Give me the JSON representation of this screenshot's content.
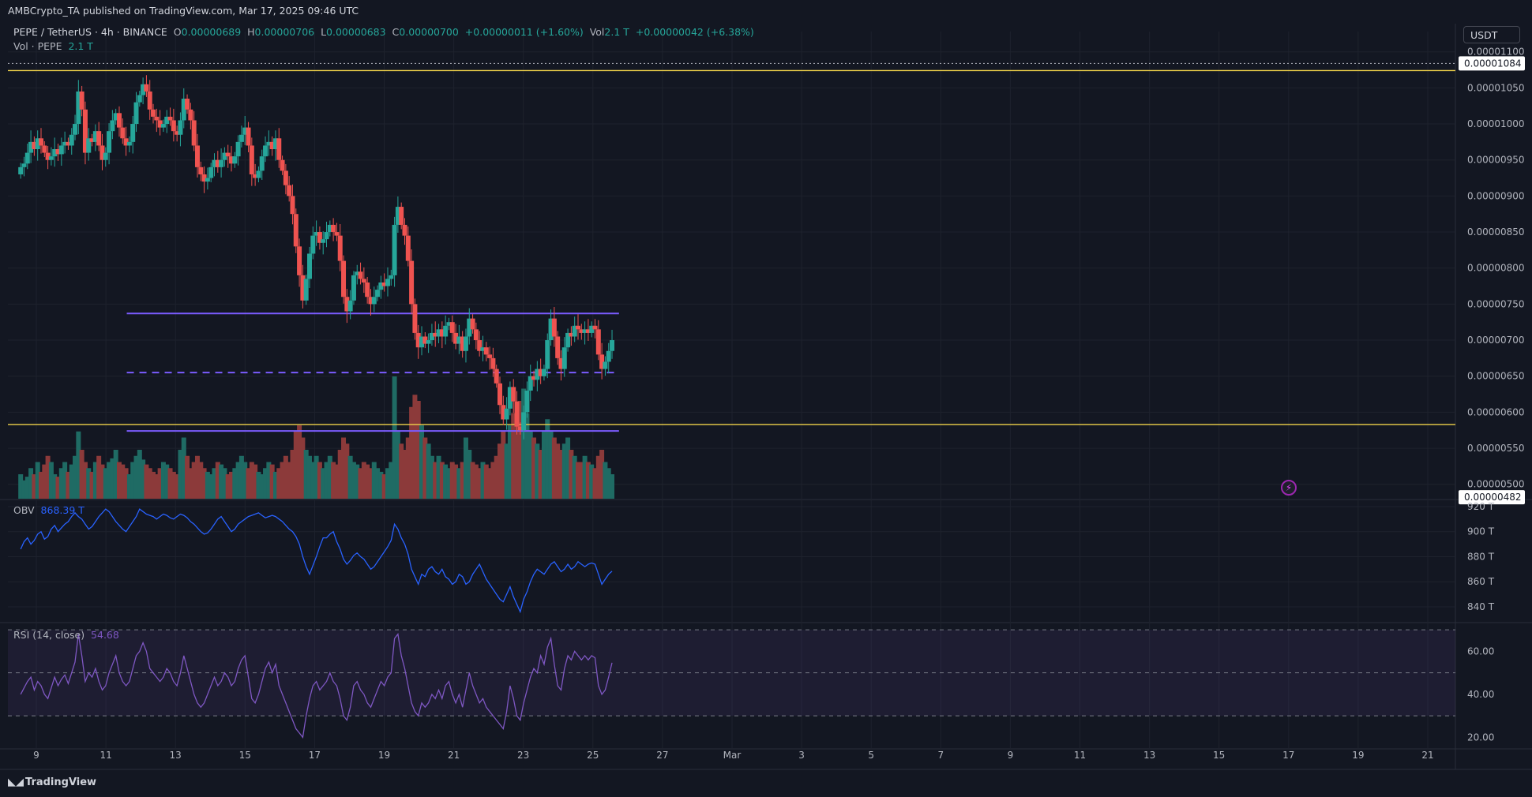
{
  "header": {
    "publisher": "AMBCrypto_TA published on TradingView.com, Mar 17, 2025 09:46 UTC",
    "symbol": "PEPE / TetherUS · 4h · BINANCE",
    "o_label": "O",
    "o_value": "0.00000689",
    "h_label": "H",
    "h_value": "0.00000706",
    "l_label": "L",
    "l_value": "0.00000683",
    "c_label": "C",
    "c_value": "0.00000700",
    "change": "+0.00000011 (+1.60%)",
    "vol_label": "Vol",
    "vol_value": "2.1 T",
    "vol_change": "+0.00000042 (+6.38%)",
    "vol_row_label": "Vol · PEPE",
    "vol_row_value": "2.1 T"
  },
  "currency_button": "USDT",
  "footer_logo": "TradingView",
  "colors": {
    "background": "#131722",
    "up": "#26a69a",
    "down": "#ef5350",
    "up_vol": "#1f6b64",
    "down_vol": "#8c3a3a",
    "support_line": "#f0d24a",
    "channel": "#7b5cff",
    "obv": "#2962ff",
    "rsi": "#7e57c2"
  },
  "chart_data": [
    {
      "type": "candlestick",
      "title": "PEPE / TetherUS · 4h · BINANCE",
      "price_axis_ticks": [
        "0.00001100",
        "0.00001050",
        "0.00001000",
        "0.00000950",
        "0.00000900",
        "0.00000850",
        "0.00000800",
        "0.00000750",
        "0.00000700",
        "0.00000650",
        "0.00000600",
        "0.00000550",
        "0.00000500"
      ],
      "price_axis_values": [
        11.0,
        10.5,
        10.0,
        9.5,
        9.0,
        8.5,
        8.0,
        7.5,
        7.0,
        6.5,
        6.0,
        5.5,
        5.0
      ],
      "price_unit_note": "values in units of 1e-6 USDT",
      "ylim": [
        4.8,
        11.15
      ],
      "x_axis_ticks": [
        "9",
        "11",
        "13",
        "15",
        "17",
        "19",
        "21",
        "23",
        "25",
        "27",
        "Mar",
        "3",
        "5",
        "7",
        "9",
        "11",
        "13",
        "15",
        "17",
        "19",
        "21"
      ],
      "price_labels": [
        {
          "label": "0.00001084",
          "value": 10.84
        },
        {
          "label": "0.00000482",
          "value": 4.82
        }
      ],
      "horizontal_lines": [
        {
          "name": "resistance-high",
          "value": 10.74,
          "color": "#f0d24a"
        },
        {
          "name": "support-low",
          "value": 5.83,
          "color": "#f0d24a"
        },
        {
          "name": "dotted-high",
          "value": 10.84,
          "color": "#b2b5be",
          "style": "dotted"
        }
      ],
      "range_channel": {
        "top": 7.37,
        "mid": 6.55,
        "bottom": 5.74,
        "start_day": 3.6,
        "end_day": 17.75,
        "color": "#7b5cff"
      },
      "candles_4h": [
        [
          9.3,
          9.4
        ],
        [
          9.4,
          9.45
        ],
        [
          9.45,
          9.6
        ],
        [
          9.6,
          9.75
        ],
        [
          9.75,
          9.65
        ],
        [
          9.65,
          9.8
        ],
        [
          9.8,
          9.7
        ],
        [
          9.7,
          9.6
        ],
        [
          9.6,
          9.5
        ],
        [
          9.5,
          9.55
        ],
        [
          9.55,
          9.65
        ],
        [
          9.65,
          9.58
        ],
        [
          9.58,
          9.7
        ],
        [
          9.7,
          9.75
        ],
        [
          9.75,
          9.7
        ],
        [
          9.7,
          9.85
        ],
        [
          9.85,
          10.0
        ],
        [
          10.0,
          10.45
        ],
        [
          10.45,
          10.2
        ],
        [
          10.2,
          9.6
        ],
        [
          9.6,
          9.8
        ],
        [
          9.8,
          9.75
        ],
        [
          9.75,
          9.9
        ],
        [
          9.9,
          9.7
        ],
        [
          9.7,
          9.5
        ],
        [
          9.5,
          9.6
        ],
        [
          9.6,
          9.9
        ],
        [
          9.9,
          10.05
        ],
        [
          10.05,
          10.15
        ],
        [
          10.15,
          9.95
        ],
        [
          9.95,
          9.8
        ],
        [
          9.8,
          9.7
        ],
        [
          9.7,
          9.75
        ],
        [
          9.75,
          10.0
        ],
        [
          10.0,
          10.3
        ],
        [
          10.3,
          10.4
        ],
        [
          10.4,
          10.55
        ],
        [
          10.55,
          10.45
        ],
        [
          10.45,
          10.2
        ],
        [
          10.2,
          10.1
        ],
        [
          10.1,
          10.05
        ],
        [
          10.05,
          9.95
        ],
        [
          9.95,
          10.0
        ],
        [
          10.0,
          10.1
        ],
        [
          10.1,
          10.05
        ],
        [
          10.05,
          9.9
        ],
        [
          9.9,
          9.85
        ],
        [
          9.85,
          10.05
        ],
        [
          10.05,
          10.35
        ],
        [
          10.35,
          10.2
        ],
        [
          10.2,
          10.05
        ],
        [
          10.05,
          9.7
        ],
        [
          9.7,
          9.4
        ],
        [
          9.4,
          9.3
        ],
        [
          9.3,
          9.2
        ],
        [
          9.2,
          9.25
        ],
        [
          9.25,
          9.4
        ],
        [
          9.4,
          9.5
        ],
        [
          9.5,
          9.4
        ],
        [
          9.4,
          9.5
        ],
        [
          9.5,
          9.6
        ],
        [
          9.6,
          9.55
        ],
        [
          9.55,
          9.45
        ],
        [
          9.45,
          9.55
        ],
        [
          9.55,
          9.75
        ],
        [
          9.75,
          9.85
        ],
        [
          9.85,
          9.95
        ],
        [
          9.95,
          9.7
        ],
        [
          9.7,
          9.3
        ],
        [
          9.3,
          9.25
        ],
        [
          9.25,
          9.35
        ],
        [
          9.35,
          9.55
        ],
        [
          9.55,
          9.7
        ],
        [
          9.7,
          9.75
        ],
        [
          9.75,
          9.65
        ],
        [
          9.65,
          9.8
        ],
        [
          9.8,
          9.5
        ],
        [
          9.5,
          9.35
        ],
        [
          9.35,
          9.15
        ],
        [
          9.15,
          9.0
        ],
        [
          9.0,
          8.75
        ],
        [
          8.75,
          8.3
        ],
        [
          8.3,
          7.9
        ],
        [
          7.9,
          7.55
        ],
        [
          7.55,
          7.85
        ],
        [
          7.85,
          8.2
        ],
        [
          8.2,
          8.45
        ],
        [
          8.45,
          8.5
        ],
        [
          8.5,
          8.35
        ],
        [
          8.35,
          8.4
        ],
        [
          8.4,
          8.5
        ],
        [
          8.5,
          8.6
        ],
        [
          8.6,
          8.5
        ],
        [
          8.5,
          8.45
        ],
        [
          8.45,
          8.1
        ],
        [
          8.1,
          7.6
        ],
        [
          7.6,
          7.4
        ],
        [
          7.4,
          7.55
        ],
        [
          7.55,
          7.9
        ],
        [
          7.9,
          7.95
        ],
        [
          7.95,
          7.85
        ],
        [
          7.85,
          7.8
        ],
        [
          7.8,
          7.6
        ],
        [
          7.6,
          7.5
        ],
        [
          7.5,
          7.6
        ],
        [
          7.6,
          7.7
        ],
        [
          7.7,
          7.8
        ],
        [
          7.8,
          7.75
        ],
        [
          7.75,
          7.85
        ],
        [
          7.85,
          7.9
        ],
        [
          7.9,
          8.6
        ],
        [
          8.6,
          8.85
        ],
        [
          8.85,
          8.6
        ],
        [
          8.6,
          8.45
        ],
        [
          8.45,
          8.1
        ],
        [
          8.1,
          7.5
        ],
        [
          7.5,
          7.1
        ],
        [
          7.1,
          6.9
        ],
        [
          6.9,
          7.05
        ],
        [
          7.05,
          6.95
        ],
        [
          6.95,
          7.0
        ],
        [
          7.0,
          7.1
        ],
        [
          7.1,
          7.05
        ],
        [
          7.05,
          7.15
        ],
        [
          7.15,
          7.05
        ],
        [
          7.05,
          7.2
        ],
        [
          7.2,
          7.25
        ],
        [
          7.25,
          7.1
        ],
        [
          7.1,
          6.95
        ],
        [
          6.95,
          7.05
        ],
        [
          7.05,
          6.85
        ],
        [
          6.85,
          7.05
        ],
        [
          7.05,
          7.3
        ],
        [
          7.3,
          7.15
        ],
        [
          7.15,
          7.0
        ],
        [
          7.0,
          6.85
        ],
        [
          6.85,
          6.9
        ],
        [
          6.9,
          6.8
        ],
        [
          6.8,
          6.75
        ],
        [
          6.75,
          6.6
        ],
        [
          6.6,
          6.4
        ],
        [
          6.4,
          6.1
        ],
        [
          6.1,
          5.9
        ],
        [
          5.9,
          6.05
        ],
        [
          6.05,
          6.35
        ],
        [
          6.35,
          6.15
        ],
        [
          6.15,
          5.8
        ],
        [
          5.8,
          5.75
        ],
        [
          5.75,
          6.0
        ],
        [
          6.0,
          6.3
        ],
        [
          6.3,
          6.5
        ],
        [
          6.5,
          6.45
        ],
        [
          6.45,
          6.6
        ],
        [
          6.6,
          6.5
        ],
        [
          6.5,
          6.6
        ],
        [
          6.6,
          7.0
        ],
        [
          7.0,
          7.3
        ],
        [
          7.3,
          7.05
        ],
        [
          7.05,
          6.75
        ],
        [
          6.75,
          6.6
        ],
        [
          6.6,
          6.9
        ],
        [
          6.9,
          7.1
        ],
        [
          7.1,
          7.05
        ],
        [
          7.05,
          7.2
        ],
        [
          7.2,
          7.15
        ],
        [
          7.15,
          7.1
        ],
        [
          7.1,
          7.15
        ],
        [
          7.15,
          7.1
        ],
        [
          7.1,
          7.2
        ],
        [
          7.2,
          7.15
        ],
        [
          7.15,
          6.8
        ],
        [
          6.8,
          6.6
        ],
        [
          6.6,
          6.7
        ],
        [
          6.7,
          6.85
        ],
        [
          6.85,
          7.0
        ]
      ],
      "volume_note": "relative bar heights 0-1",
      "volume": [
        0.2,
        0.15,
        0.18,
        0.25,
        0.2,
        0.3,
        0.22,
        0.28,
        0.35,
        0.3,
        0.2,
        0.18,
        0.25,
        0.3,
        0.22,
        0.28,
        0.35,
        0.55,
        0.4,
        0.3,
        0.25,
        0.22,
        0.3,
        0.35,
        0.28,
        0.25,
        0.3,
        0.33,
        0.4,
        0.3,
        0.28,
        0.25,
        0.2,
        0.3,
        0.35,
        0.4,
        0.32,
        0.28,
        0.25,
        0.22,
        0.2,
        0.25,
        0.3,
        0.28,
        0.25,
        0.22,
        0.2,
        0.4,
        0.5,
        0.35,
        0.25,
        0.3,
        0.35,
        0.3,
        0.25,
        0.22,
        0.2,
        0.25,
        0.3,
        0.28,
        0.25,
        0.2,
        0.22,
        0.25,
        0.3,
        0.35,
        0.3,
        0.25,
        0.3,
        0.28,
        0.22,
        0.2,
        0.25,
        0.3,
        0.28,
        0.22,
        0.25,
        0.3,
        0.35,
        0.3,
        0.4,
        0.55,
        0.6,
        0.5,
        0.4,
        0.35,
        0.3,
        0.35,
        0.3,
        0.25,
        0.3,
        0.35,
        0.3,
        0.28,
        0.4,
        0.5,
        0.45,
        0.35,
        0.3,
        0.28,
        0.25,
        0.3,
        0.28,
        0.25,
        0.3,
        0.25,
        0.22,
        0.2,
        0.25,
        0.3,
        1.0,
        0.55,
        0.45,
        0.4,
        0.5,
        0.75,
        0.85,
        0.8,
        0.6,
        0.5,
        0.45,
        0.35,
        0.3,
        0.35,
        0.3,
        0.28,
        0.25,
        0.3,
        0.28,
        0.25,
        0.3,
        0.5,
        0.4,
        0.3,
        0.28,
        0.25,
        0.3,
        0.28,
        0.25,
        0.3,
        0.35,
        0.45,
        0.55,
        0.45,
        0.6,
        0.7,
        0.65,
        0.8,
        0.9,
        0.7,
        0.55,
        0.5,
        0.45,
        0.4,
        0.55,
        0.65,
        0.55,
        0.5,
        0.45,
        0.4,
        0.45,
        0.5,
        0.4,
        0.35,
        0.3,
        0.3,
        0.35,
        0.3,
        0.28,
        0.25,
        0.35,
        0.4,
        0.3,
        0.25,
        0.2
      ]
    },
    {
      "type": "line",
      "title": "OBV",
      "series": [
        {
          "name": "OBV",
          "value_label": "868.39 T"
        }
      ],
      "y_axis_ticks": [
        "920 T",
        "900 T",
        "880 T",
        "860 T",
        "840 T"
      ],
      "y_axis_values": [
        920,
        900,
        880,
        860,
        840
      ],
      "ylim": [
        828,
        925
      ],
      "values": [
        886,
        892,
        895,
        890,
        893,
        898,
        900,
        894,
        896,
        902,
        905,
        900,
        903,
        906,
        908,
        912,
        915,
        912,
        910,
        906,
        902,
        904,
        908,
        912,
        915,
        918,
        916,
        912,
        908,
        905,
        902,
        900,
        904,
        908,
        912,
        918,
        916,
        914,
        913,
        912,
        910,
        912,
        914,
        913,
        911,
        910,
        912,
        914,
        913,
        911,
        908,
        906,
        903,
        900,
        898,
        899,
        902,
        906,
        910,
        912,
        908,
        904,
        900,
        902,
        906,
        908,
        910,
        912,
        913,
        914,
        915,
        913,
        911,
        912,
        913,
        912,
        910,
        908,
        905,
        902,
        900,
        896,
        890,
        880,
        872,
        866,
        873,
        880,
        888,
        895,
        895,
        898,
        900,
        892,
        886,
        878,
        874,
        877,
        881,
        883,
        880,
        878,
        874,
        870,
        872,
        876,
        880,
        884,
        888,
        893,
        906,
        902,
        895,
        890,
        882,
        870,
        864,
        858,
        866,
        864,
        870,
        872,
        868,
        866,
        870,
        864,
        862,
        858,
        860,
        866,
        864,
        858,
        860,
        866,
        870,
        874,
        868,
        862,
        858,
        854,
        850,
        846,
        844,
        850,
        856,
        848,
        842,
        836,
        846,
        852,
        860,
        866,
        870,
        868,
        866,
        870,
        874,
        876,
        872,
        868,
        870,
        874,
        870,
        872,
        876,
        874,
        872,
        874,
        875,
        874,
        866,
        858,
        862,
        866,
        868.39
      ]
    },
    {
      "type": "line",
      "title": "RSI (14, close)",
      "series": [
        {
          "name": "RSI (14, close)",
          "value_label": "54.68"
        }
      ],
      "y_axis_ticks": [
        "60.00",
        "40.00",
        "20.00"
      ],
      "y_axis_values": [
        60,
        40,
        20
      ],
      "ylim": [
        15,
        73
      ],
      "bands": {
        "upper": 70,
        "middle": 50,
        "lower": 30
      },
      "values": [
        40,
        43,
        46,
        48,
        42,
        46,
        44,
        40,
        38,
        43,
        48,
        44,
        47,
        49,
        45,
        50,
        55,
        68,
        58,
        46,
        50,
        48,
        52,
        46,
        42,
        44,
        50,
        54,
        58,
        50,
        46,
        44,
        46,
        52,
        58,
        60,
        64,
        60,
        52,
        50,
        48,
        46,
        48,
        52,
        50,
        46,
        44,
        50,
        58,
        52,
        46,
        40,
        36,
        34,
        36,
        40,
        44,
        48,
        44,
        46,
        50,
        48,
        44,
        46,
        52,
        56,
        58,
        48,
        38,
        36,
        40,
        46,
        52,
        55,
        50,
        54,
        44,
        40,
        36,
        32,
        28,
        24,
        22,
        20,
        30,
        38,
        44,
        46,
        42,
        44,
        46,
        50,
        46,
        44,
        38,
        30,
        28,
        34,
        44,
        46,
        42,
        40,
        36,
        34,
        38,
        42,
        46,
        44,
        48,
        50,
        66,
        68,
        58,
        52,
        44,
        36,
        32,
        30,
        36,
        34,
        36,
        40,
        38,
        42,
        38,
        44,
        46,
        40,
        36,
        40,
        34,
        42,
        50,
        44,
        40,
        36,
        38,
        34,
        32,
        30,
        28,
        26,
        24,
        32,
        44,
        38,
        30,
        28,
        36,
        42,
        48,
        52,
        50,
        58,
        54,
        62,
        66,
        54,
        44,
        42,
        52,
        58,
        56,
        60,
        58,
        56,
        58,
        56,
        58,
        57,
        44,
        40,
        42,
        48,
        54.68
      ]
    }
  ]
}
